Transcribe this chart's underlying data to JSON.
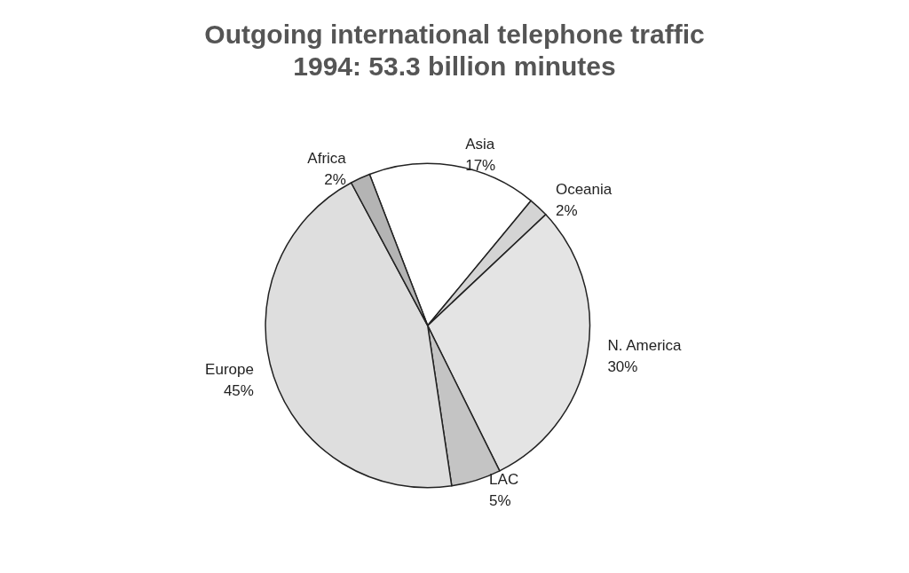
{
  "chart_data": {
    "type": "pie",
    "title": "Outgoing international telephone traffic",
    "subtitle": "1994: 53.3 billion minutes",
    "categories": [
      "Asia",
      "Oceania",
      "N. America",
      "LAC",
      "Europe",
      "Africa"
    ],
    "values": [
      17,
      2,
      30,
      5,
      45,
      2
    ],
    "value_labels": [
      "17%",
      "2%",
      "30%",
      "5%",
      "45%",
      "2%"
    ],
    "colors": [
      "#ffffff",
      "#d4d4d4",
      "#e4e4e4",
      "#c4c4c4",
      "#dedede",
      "#b4b4b4"
    ]
  }
}
